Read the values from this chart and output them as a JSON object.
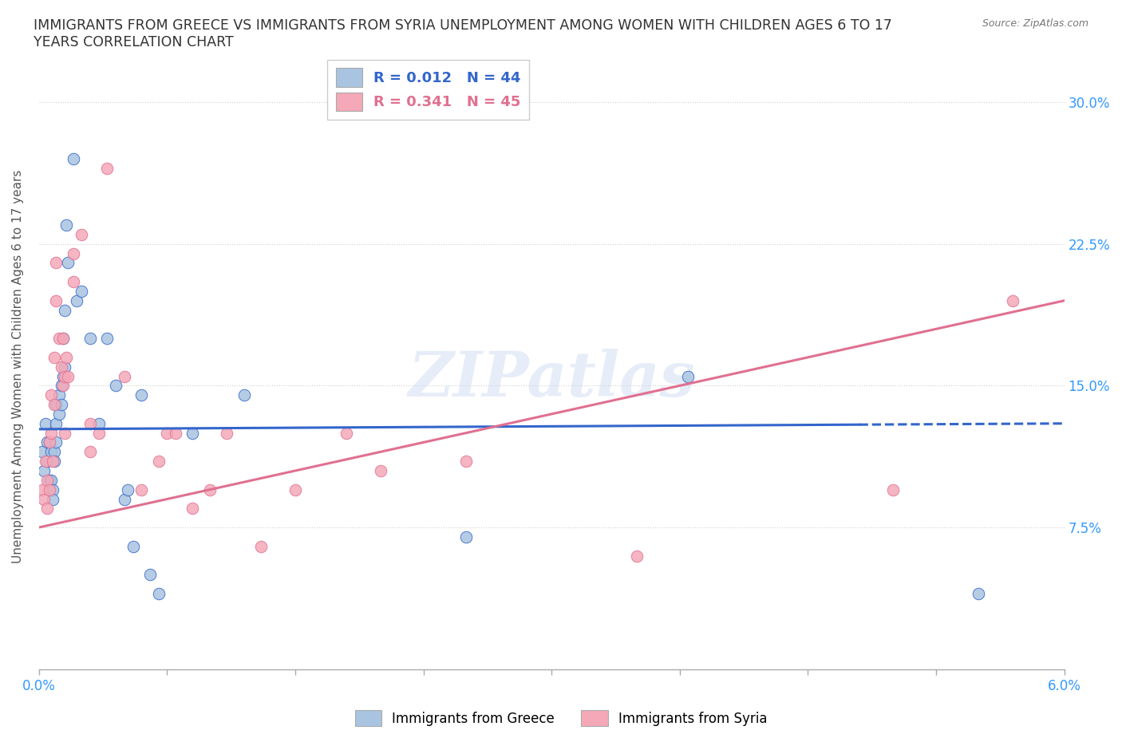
{
  "title": "IMMIGRANTS FROM GREECE VS IMMIGRANTS FROM SYRIA UNEMPLOYMENT AMONG WOMEN WITH CHILDREN AGES 6 TO 17\nYEARS CORRELATION CHART",
  "source": "Source: ZipAtlas.com",
  "ylabel": "Unemployment Among Women with Children Ages 6 to 17 years",
  "xlim": [
    0.0,
    0.06
  ],
  "ylim": [
    0.0,
    0.32
  ],
  "greece_color": "#a8c4e0",
  "syria_color": "#f4a8b8",
  "greece_line_color": "#3366cc",
  "syria_line_color": "#e07090",
  "greece_R": "0.012",
  "greece_N": "44",
  "syria_R": "0.341",
  "syria_N": "45",
  "legend_label_greece": "Immigrants from Greece",
  "legend_label_syria": "Immigrants from Syria",
  "watermark": "ZIPatlas",
  "greece_scatter_x": [
    0.0002,
    0.0003,
    0.0004,
    0.0005,
    0.0005,
    0.0006,
    0.0006,
    0.0007,
    0.0007,
    0.0008,
    0.0008,
    0.0009,
    0.0009,
    0.001,
    0.001,
    0.001,
    0.0012,
    0.0012,
    0.0013,
    0.0013,
    0.0014,
    0.0014,
    0.0015,
    0.0015,
    0.0016,
    0.0017,
    0.002,
    0.0022,
    0.0025,
    0.003,
    0.0035,
    0.004,
    0.0045,
    0.005,
    0.0052,
    0.0055,
    0.006,
    0.0065,
    0.007,
    0.009,
    0.012,
    0.025,
    0.038,
    0.055
  ],
  "greece_scatter_y": [
    0.115,
    0.105,
    0.13,
    0.12,
    0.11,
    0.12,
    0.1,
    0.115,
    0.1,
    0.095,
    0.09,
    0.115,
    0.11,
    0.14,
    0.13,
    0.12,
    0.145,
    0.135,
    0.15,
    0.14,
    0.175,
    0.155,
    0.19,
    0.16,
    0.235,
    0.215,
    0.27,
    0.195,
    0.2,
    0.175,
    0.13,
    0.175,
    0.15,
    0.09,
    0.095,
    0.065,
    0.145,
    0.05,
    0.04,
    0.125,
    0.145,
    0.07,
    0.155,
    0.04
  ],
  "syria_scatter_x": [
    0.0002,
    0.0003,
    0.0004,
    0.0005,
    0.0005,
    0.0006,
    0.0006,
    0.0007,
    0.0007,
    0.0008,
    0.0009,
    0.0009,
    0.001,
    0.001,
    0.0012,
    0.0013,
    0.0014,
    0.0014,
    0.0015,
    0.0015,
    0.0016,
    0.0017,
    0.002,
    0.002,
    0.0025,
    0.003,
    0.003,
    0.0035,
    0.004,
    0.005,
    0.006,
    0.007,
    0.0075,
    0.008,
    0.009,
    0.01,
    0.011,
    0.013,
    0.015,
    0.018,
    0.02,
    0.025,
    0.035,
    0.05,
    0.057
  ],
  "syria_scatter_y": [
    0.095,
    0.09,
    0.11,
    0.1,
    0.085,
    0.12,
    0.095,
    0.145,
    0.125,
    0.11,
    0.165,
    0.14,
    0.215,
    0.195,
    0.175,
    0.16,
    0.175,
    0.15,
    0.155,
    0.125,
    0.165,
    0.155,
    0.22,
    0.205,
    0.23,
    0.13,
    0.115,
    0.125,
    0.265,
    0.155,
    0.095,
    0.11,
    0.125,
    0.125,
    0.085,
    0.095,
    0.125,
    0.065,
    0.095,
    0.125,
    0.105,
    0.11,
    0.06,
    0.095,
    0.195
  ],
  "greece_line_x": [
    0.0,
    0.06
  ],
  "greece_line_y": [
    0.127,
    0.13
  ],
  "greece_line_solid_end": 0.048,
  "syria_line_x": [
    0.0,
    0.06
  ],
  "syria_line_y": [
    0.075,
    0.195
  ],
  "background_color": "#ffffff",
  "grid_color": "#d0d0d0",
  "title_color": "#333333",
  "axis_color": "#3399ff",
  "right_tick_color": "#3399ff",
  "x_minor_ticks": [
    0.0,
    0.0075,
    0.015,
    0.0225,
    0.03,
    0.0375,
    0.045,
    0.0525,
    0.06
  ]
}
